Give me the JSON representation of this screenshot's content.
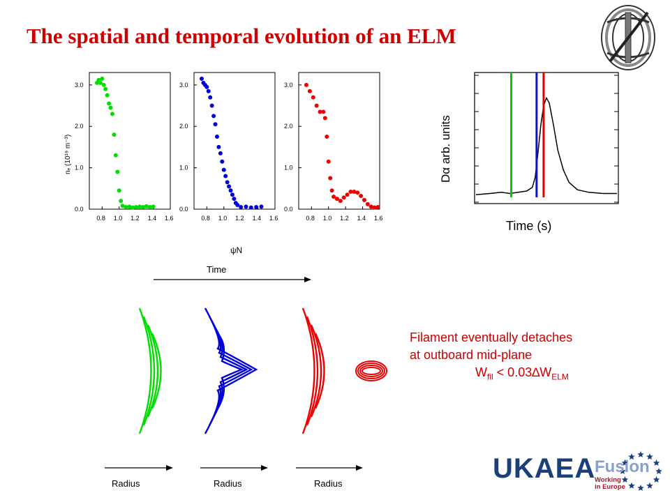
{
  "slide": {
    "title": "The spatial and temporal evolution of an ELM",
    "caption": {
      "line1": "Filament eventually detaches",
      "line2": "at outboard mid-plane",
      "formula_w": "W",
      "formula_fil": "fil",
      "formula_mid": " < 0.03∆W",
      "formula_elm": "ELM"
    },
    "logo": {
      "ukaea": "UKAEA",
      "fusion": "Fusion",
      "working": [
        "Working",
        "in Europe"
      ]
    }
  },
  "profiles": {
    "ylabel": "nₑ  (10¹⁹ m⁻³)",
    "xlabel": "ψN",
    "xticks": [
      "0.8",
      "1.0",
      "1.2",
      "1.4",
      "1.6"
    ],
    "yticks": [
      "0.0",
      "1.0",
      "2.0",
      "3.0"
    ]
  },
  "dalpha": {
    "ylabel": "Dα   arb. units",
    "xlabel": "Time  (s)",
    "markers": [
      "#00cc00",
      "#1010cc",
      "#dd0000"
    ]
  },
  "evolution": {
    "time_label": "Time",
    "radius_labels": [
      "Radius",
      "Radius",
      "Radius"
    ],
    "colors": [
      "#00dd00",
      "#0000dd",
      "#ee0000"
    ]
  },
  "chart_data": [
    {
      "type": "scatter",
      "xlabel": "ψN",
      "ylabel": "nₑ  (10¹⁹ m⁻³)",
      "xlim": [
        0.65,
        1.6
      ],
      "ylim": [
        0,
        3.3
      ],
      "series": [
        {
          "color": "#00dd00",
          "points": [
            [
              0.74,
              3.05
            ],
            [
              0.76,
              3.12
            ],
            [
              0.78,
              3.05
            ],
            [
              0.8,
              3.15
            ],
            [
              0.82,
              3.0
            ],
            [
              0.84,
              2.9
            ],
            [
              0.86,
              2.75
            ],
            [
              0.88,
              2.55
            ],
            [
              0.9,
              2.45
            ],
            [
              0.92,
              2.3
            ],
            [
              0.94,
              1.8
            ],
            [
              0.96,
              1.3
            ],
            [
              0.98,
              0.9
            ],
            [
              1.0,
              0.45
            ],
            [
              1.02,
              0.2
            ],
            [
              1.04,
              0.08
            ],
            [
              1.08,
              0.05
            ],
            [
              1.12,
              0.06
            ],
            [
              1.16,
              0.04
            ],
            [
              1.2,
              0.05
            ],
            [
              1.24,
              0.06
            ],
            [
              1.28,
              0.05
            ],
            [
              1.32,
              0.07
            ],
            [
              1.36,
              0.05
            ],
            [
              1.4,
              0.06
            ]
          ]
        },
        {
          "color": "#0000dd",
          "points": [
            [
              0.74,
              3.15
            ],
            [
              0.76,
              3.05
            ],
            [
              0.78,
              3.0
            ],
            [
              0.8,
              2.95
            ],
            [
              0.82,
              2.85
            ],
            [
              0.84,
              2.7
            ],
            [
              0.86,
              2.5
            ],
            [
              0.88,
              2.25
            ],
            [
              0.9,
              2.05
            ],
            [
              0.92,
              1.75
            ],
            [
              0.94,
              1.5
            ],
            [
              0.96,
              1.35
            ],
            [
              0.98,
              1.15
            ],
            [
              1.0,
              0.95
            ],
            [
              1.02,
              0.8
            ],
            [
              1.04,
              0.65
            ],
            [
              1.06,
              0.55
            ],
            [
              1.08,
              0.45
            ],
            [
              1.1,
              0.35
            ],
            [
              1.12,
              0.25
            ],
            [
              1.14,
              0.15
            ],
            [
              1.16,
              0.1
            ],
            [
              1.2,
              0.05
            ],
            [
              1.26,
              0.06
            ],
            [
              1.32,
              0.04
            ],
            [
              1.38,
              0.05
            ],
            [
              1.44,
              0.06
            ]
          ]
        },
        {
          "color": "#ee0000",
          "points": [
            [
              0.74,
              3.0
            ],
            [
              0.78,
              2.85
            ],
            [
              0.82,
              2.7
            ],
            [
              0.86,
              2.5
            ],
            [
              0.9,
              2.35
            ],
            [
              0.94,
              2.35
            ],
            [
              0.96,
              2.2
            ],
            [
              0.98,
              1.75
            ],
            [
              1.0,
              1.15
            ],
            [
              1.02,
              0.75
            ],
            [
              1.04,
              0.45
            ],
            [
              1.06,
              0.3
            ],
            [
              1.1,
              0.25
            ],
            [
              1.14,
              0.2
            ],
            [
              1.18,
              0.28
            ],
            [
              1.22,
              0.35
            ],
            [
              1.26,
              0.42
            ],
            [
              1.3,
              0.42
            ],
            [
              1.34,
              0.4
            ],
            [
              1.38,
              0.32
            ],
            [
              1.42,
              0.22
            ],
            [
              1.46,
              0.12
            ],
            [
              1.5,
              0.06
            ],
            [
              1.54,
              0.04
            ],
            [
              1.58,
              0.05
            ]
          ]
        }
      ]
    },
    {
      "type": "line",
      "xlabel": "Time  (s)",
      "ylabel": "Dα   arb. units",
      "xlim": [
        0,
        1
      ],
      "ylim": [
        0,
        1
      ],
      "series": [
        {
          "points": [
            [
              0,
              0.06
            ],
            [
              0.1,
              0.07
            ],
            [
              0.18,
              0.08
            ],
            [
              0.24,
              0.07
            ],
            [
              0.3,
              0.08
            ],
            [
              0.36,
              0.09
            ],
            [
              0.4,
              0.12
            ],
            [
              0.42,
              0.2
            ],
            [
              0.44,
              0.4
            ],
            [
              0.46,
              0.62
            ],
            [
              0.48,
              0.78
            ],
            [
              0.5,
              0.84
            ],
            [
              0.52,
              0.8
            ],
            [
              0.55,
              0.62
            ],
            [
              0.58,
              0.42
            ],
            [
              0.62,
              0.26
            ],
            [
              0.66,
              0.16
            ],
            [
              0.72,
              0.1
            ],
            [
              0.8,
              0.08
            ],
            [
              0.9,
              0.07
            ],
            [
              1.0,
              0.07
            ]
          ]
        }
      ],
      "markers_x": [
        0.25,
        0.43,
        0.48
      ]
    }
  ]
}
